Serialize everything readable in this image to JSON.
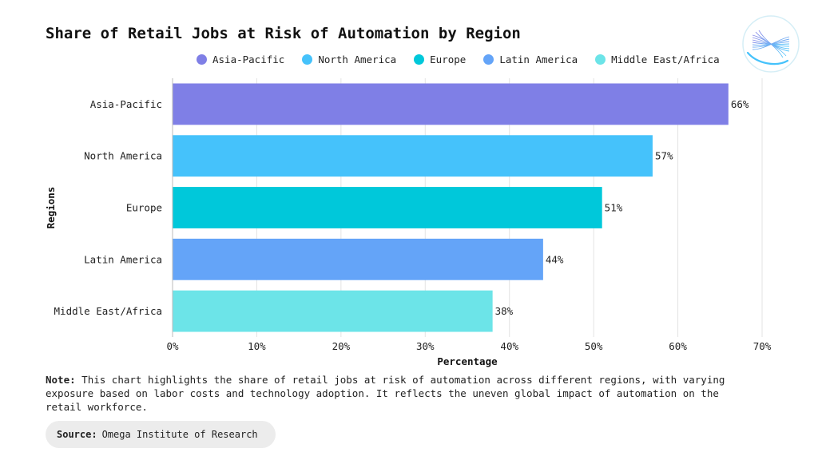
{
  "chart_data": {
    "type": "bar",
    "orientation": "horizontal",
    "title": "Share of Retail Jobs at Risk of Automation by Region",
    "xlabel": "Percentage",
    "ylabel": "Regions",
    "xlim": [
      0,
      70
    ],
    "xticks": [
      0,
      10,
      20,
      30,
      40,
      50,
      60,
      70
    ],
    "tick_suffix": "%",
    "grid": "vertical",
    "legend_position": "top",
    "categories": [
      "Asia-Pacific",
      "North America",
      "Europe",
      "Latin America",
      "Middle East/Africa"
    ],
    "values": [
      66,
      57,
      51,
      44,
      38
    ],
    "data_labels": [
      "66%",
      "57%",
      "51%",
      "44%",
      "38%"
    ],
    "colors": [
      "#7f7fe6",
      "#45c2fb",
      "#00c8da",
      "#64a4f8",
      "#6ce4e8"
    ]
  },
  "legend": [
    {
      "label": "Asia-Pacific",
      "color": "#7f7fe6"
    },
    {
      "label": "North America",
      "color": "#45c2fb"
    },
    {
      "label": "Europe",
      "color": "#00c8da"
    },
    {
      "label": "Latin America",
      "color": "#64a4f8"
    },
    {
      "label": "Middle East/Africa",
      "color": "#6ce4e8"
    }
  ],
  "note": {
    "prefix": "Note:",
    "text": "This chart highlights the share of retail jobs at risk of automation across different regions, with varying exposure based on labor costs and technology adoption. It reflects the uneven global impact of automation on the retail workforce."
  },
  "source": {
    "prefix": "Source:",
    "text": "Omega Institute of Research"
  },
  "logo_icon": "wave-ribbon-logo-icon"
}
